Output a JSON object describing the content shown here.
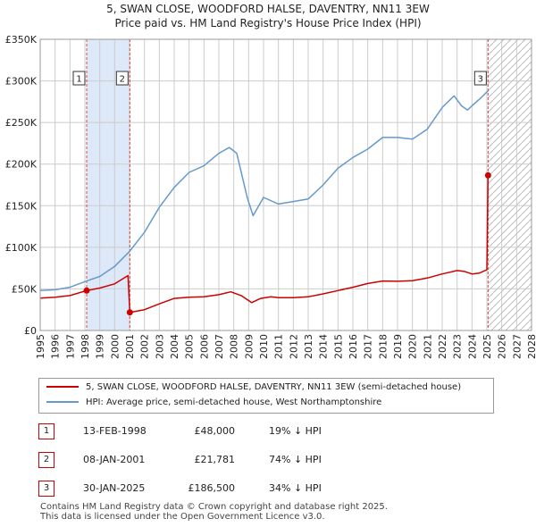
{
  "header": {
    "title_line1": "5, SWAN CLOSE, WOODFORD HALSE, DAVENTRY, NN11 3EW",
    "title_line2": "Price paid vs. HM Land Registry's House Price Index (HPI)"
  },
  "colors": {
    "property": "#cc0000",
    "hpi": "#6699cc",
    "grid": "#cccccc",
    "shade": "#dde8f8",
    "hatch": "#bbbbbb"
  },
  "chart_data": {
    "type": "line",
    "title": "5, SWAN CLOSE, WOODFORD HALSE, DAVENTRY, NN11 3EW",
    "subtitle": "Price paid vs. HM Land Registry's House Price Index (HPI)",
    "xlabel": "",
    "ylabel": "",
    "xlim": [
      1995,
      2028
    ],
    "ylim": [
      0,
      350000
    ],
    "x_ticks": [
      1995,
      1996,
      1997,
      1998,
      1999,
      2000,
      2001,
      2002,
      2003,
      2004,
      2005,
      2006,
      2007,
      2008,
      2009,
      2010,
      2011,
      2012,
      2013,
      2014,
      2015,
      2016,
      2017,
      2018,
      2019,
      2020,
      2021,
      2022,
      2023,
      2024,
      2025,
      2026,
      2027,
      2028
    ],
    "y_ticks": [
      0,
      50000,
      100000,
      150000,
      200000,
      250000,
      300000,
      350000
    ],
    "y_tick_labels": [
      "£0",
      "£50K",
      "£100K",
      "£150K",
      "£200K",
      "£250K",
      "£300K",
      "£350K"
    ],
    "grid": true,
    "shaded_period": [
      1998.12,
      2001.02
    ],
    "future_hatch_from": 2025.08,
    "series": [
      {
        "name": "5, SWAN CLOSE, WOODFORD HALSE, DAVENTRY, NN11 3EW (semi-detached house)",
        "color": "#cc0000",
        "x": [
          1995.0,
          1996.0,
          1997.0,
          1998.12,
          1999.0,
          2000.0,
          2000.9,
          2001.02,
          2002.0,
          2003.0,
          2004.0,
          2005.0,
          2006.0,
          2007.0,
          2007.8,
          2008.5,
          2009.2,
          2009.8,
          2010.5,
          2011.0,
          2012.0,
          2013.0,
          2014.0,
          2015.0,
          2016.0,
          2017.0,
          2018.0,
          2019.0,
          2020.0,
          2021.0,
          2022.0,
          2023.0,
          2023.5,
          2024.0,
          2024.5,
          2025.0,
          2025.08
        ],
        "values": [
          39000,
          40000,
          42000,
          48000,
          51000,
          56000,
          66000,
          21781,
          25000,
          32000,
          38500,
          40000,
          40500,
          43000,
          46500,
          42000,
          33500,
          38500,
          40500,
          39500,
          39500,
          40500,
          44000,
          48000,
          52000,
          56500,
          59500,
          59200,
          59800,
          63000,
          68000,
          72000,
          71000,
          68000,
          69000,
          73000,
          186500
        ]
      },
      {
        "name": "HPI: Average price, semi-detached house, West Northamptonshire",
        "color": "#6699cc",
        "x": [
          1995.0,
          1996.0,
          1997.0,
          1998.12,
          1999.0,
          2000.0,
          2001.0,
          2002.0,
          2003.0,
          2004.0,
          2005.0,
          2006.0,
          2007.0,
          2007.7,
          2008.2,
          2008.9,
          2009.3,
          2010.0,
          2011.0,
          2012.0,
          2013.0,
          2014.0,
          2015.0,
          2016.0,
          2017.0,
          2018.0,
          2019.0,
          2020.0,
          2021.0,
          2022.0,
          2022.8,
          2023.3,
          2023.7,
          2024.0,
          2024.5,
          2025.08
        ],
        "values": [
          48000,
          49000,
          52000,
          59500,
          65000,
          77000,
          95000,
          118000,
          148000,
          172000,
          190000,
          198000,
          213000,
          220000,
          213000,
          160000,
          138000,
          160000,
          152000,
          155000,
          158000,
          175000,
          195000,
          208000,
          218000,
          232000,
          232000,
          230000,
          242000,
          268000,
          282000,
          270000,
          265000,
          270000,
          278000,
          288000
        ]
      }
    ],
    "sales": [
      {
        "label": "1",
        "x": 1998.12,
        "value": 48000
      },
      {
        "label": "2",
        "x": 2001.02,
        "value": 21781
      },
      {
        "label": "3",
        "x": 2025.08,
        "value": 186500
      }
    ]
  },
  "legend": {
    "property_label": "5, SWAN CLOSE, WOODFORD HALSE, DAVENTRY, NN11 3EW (semi-detached house)",
    "hpi_label": "HPI: Average price, semi-detached house, West Northamptonshire"
  },
  "transactions": [
    {
      "num": "1",
      "date": "13-FEB-1998",
      "price": "£48,000",
      "hpi": "19% ↓ HPI"
    },
    {
      "num": "2",
      "date": "08-JAN-2001",
      "price": "£21,781",
      "hpi": "74% ↓ HPI"
    },
    {
      "num": "3",
      "date": "30-JAN-2025",
      "price": "£186,500",
      "hpi": "34% ↓ HPI"
    }
  ],
  "footer": {
    "line1": "Contains HM Land Registry data © Crown copyright and database right 2025.",
    "line2": "This data is licensed under the Open Government Licence v3.0."
  }
}
